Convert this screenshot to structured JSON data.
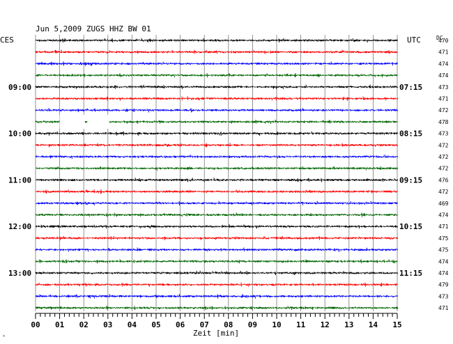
{
  "header": {
    "title": "Jun 5,2009   ZUGS HHZ BW 01",
    "left_label": "CES",
    "right_label": "UTC",
    "dc_label": "DC"
  },
  "chart_data": {
    "type": "helicorder",
    "station": "ZUGS",
    "channel": "HHZ",
    "network": "BW",
    "location": "01",
    "date": "Jun 5,2009",
    "xlabel": "Zeit [min]",
    "x_ticks": [
      "00",
      "01",
      "02",
      "03",
      "04",
      "05",
      "06",
      "07",
      "08",
      "09",
      "10",
      "11",
      "12",
      "13",
      "14",
      "15"
    ],
    "xlim": [
      0,
      15
    ],
    "trace_colors": [
      "#000000",
      "#ff0000",
      "#0000ff",
      "#006600"
    ],
    "rows": 24,
    "left_time_labels": [
      {
        "row": 4,
        "label": "09:00"
      },
      {
        "row": 8,
        "label": "10:00"
      },
      {
        "row": 12,
        "label": "11:00"
      },
      {
        "row": 16,
        "label": "12:00"
      },
      {
        "row": 20,
        "label": "13:00"
      }
    ],
    "right_time_labels": [
      {
        "row": 4,
        "label": "07:15"
      },
      {
        "row": 8,
        "label": "08:15"
      },
      {
        "row": 12,
        "label": "09:15"
      },
      {
        "row": 16,
        "label": "10:15"
      },
      {
        "row": 20,
        "label": "11:15"
      }
    ],
    "dc_values": [
      "470",
      "471",
      "474",
      "474",
      "473",
      "471",
      "472",
      "478",
      "473",
      "472",
      "472",
      "472",
      "476",
      "472",
      "469",
      "474",
      "471",
      "475",
      "475",
      "474",
      "474",
      "479",
      "473",
      "471"
    ],
    "gaps": [
      {
        "row": 7,
        "start_min": 1.0,
        "end_min": 2.05
      },
      {
        "row": 7,
        "start_min": 2.15,
        "end_min": 3.05
      }
    ]
  }
}
